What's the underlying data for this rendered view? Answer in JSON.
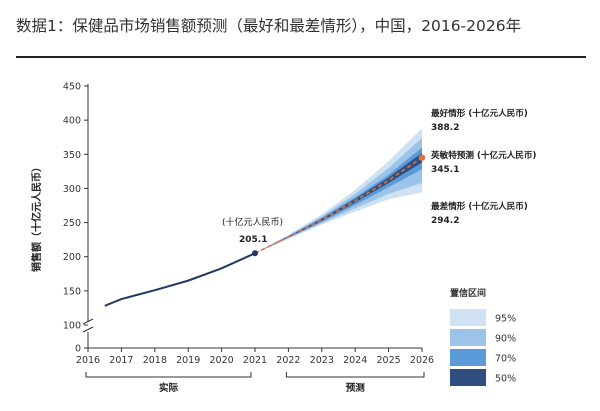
{
  "title": "数据1：保健品市场销售额预测（最好和最差情形），中国，2016-2026年",
  "chart_data": {
    "type": "line",
    "ylabel": "销售额（十亿元人民币）",
    "ylim": [
      0,
      450
    ],
    "yticks": [
      0,
      100,
      150,
      200,
      250,
      300,
      350,
      400,
      450
    ],
    "y_axis_break": "between 0 and 100",
    "x": [
      2016,
      2017,
      2018,
      2019,
      2020,
      2021,
      2022,
      2023,
      2024,
      2025,
      2026
    ],
    "grid": false,
    "actual": {
      "x": [
        2016.5,
        2017,
        2018,
        2019,
        2020,
        2021
      ],
      "y": [
        128,
        138,
        151,
        165,
        183,
        205.1
      ]
    },
    "forecast": {
      "x": [
        2021,
        2022,
        2023,
        2024,
        2025,
        2026
      ],
      "y": [
        205.1,
        229,
        254,
        282,
        312,
        345.1
      ]
    },
    "confidence_bands": [
      {
        "level": "95%",
        "color": "#cfe2f3",
        "upper": [
          205.1,
          232,
          262,
          298,
          340,
          388.2
        ],
        "lower": [
          205.1,
          226,
          247,
          266,
          284,
          294.2
        ]
      },
      {
        "level": "90%",
        "color": "#9cc3e8",
        "upper": [
          205.1,
          231,
          259,
          292,
          330,
          374
        ],
        "lower": [
          205.1,
          227,
          249,
          271,
          292,
          308
        ]
      },
      {
        "level": "70%",
        "color": "#5b9ad8",
        "upper": [
          205.1,
          230,
          257,
          287,
          320,
          360
        ],
        "lower": [
          205.1,
          228,
          251,
          276,
          302,
          328
        ]
      },
      {
        "level": "50%",
        "color": "#2f4f80",
        "upper": [
          205.1,
          229.5,
          255.5,
          284.5,
          316,
          352
        ],
        "lower": [
          205.1,
          228.5,
          252.5,
          279.5,
          308,
          338
        ]
      }
    ],
    "legend": {
      "title": "置信区间",
      "placement": "bottom-right",
      "items": [
        "95%",
        "90%",
        "70%",
        "50%"
      ]
    },
    "annotations": {
      "start_unit": "(十亿元人民币)",
      "start_value": "205.1",
      "best_label": "最好情形 (十亿元人民币)",
      "best_value": "388.2",
      "forecast_label": "英敏特预测 (十亿元人民币)",
      "forecast_value": "345.1",
      "worst_label": "最差情形 (十亿元人民币)",
      "worst_value": "294.2"
    },
    "periods": {
      "actual": "实际",
      "forecast": "预测"
    },
    "colors": {
      "actual_line": "#1f3a68",
      "forecast_line": "#e07040",
      "axis": "#333333"
    }
  }
}
